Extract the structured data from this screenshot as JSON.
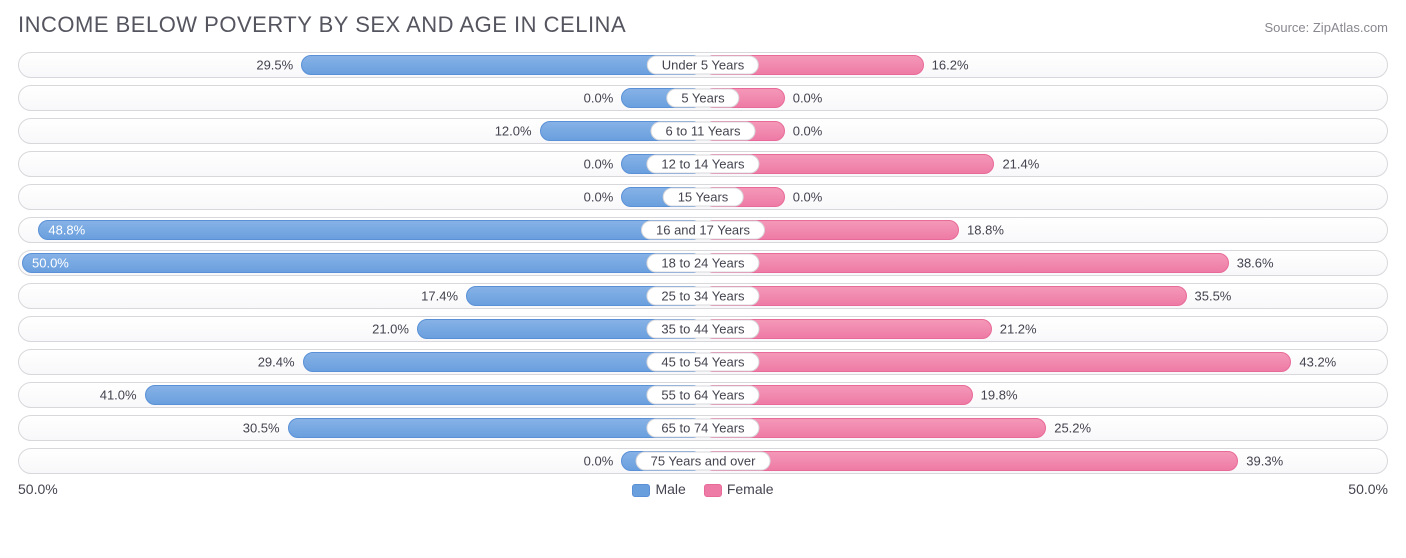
{
  "title": "INCOME BELOW POVERTY BY SEX AND AGE IN CELINA",
  "source": "Source: ZipAtlas.com",
  "chart": {
    "type": "diverging-bar",
    "axis_max": 50.0,
    "axis_label_left": "50.0%",
    "axis_label_right": "50.0%",
    "colors": {
      "male_fill": "#6a9fde",
      "male_border": "#5a90d6",
      "female_fill": "#ee7ba5",
      "female_border": "#e86a98",
      "row_border": "#d8d8dc",
      "row_bg_top": "#ffffff",
      "row_bg_bottom": "#f8f8fa",
      "text": "#444450",
      "title_text": "#555560"
    },
    "inside_label_threshold_pct": 92.0,
    "legend": {
      "male": "Male",
      "female": "Female"
    },
    "rows": [
      {
        "category": "Under 5 Years",
        "male": 29.5,
        "female": 16.2
      },
      {
        "category": "5 Years",
        "male": 0.0,
        "female": 0.0
      },
      {
        "category": "6 to 11 Years",
        "male": 12.0,
        "female": 0.0
      },
      {
        "category": "12 to 14 Years",
        "male": 0.0,
        "female": 21.4
      },
      {
        "category": "15 Years",
        "male": 0.0,
        "female": 0.0
      },
      {
        "category": "16 and 17 Years",
        "male": 48.8,
        "female": 18.8
      },
      {
        "category": "18 to 24 Years",
        "male": 50.0,
        "female": 38.6
      },
      {
        "category": "25 to 34 Years",
        "male": 17.4,
        "female": 35.5
      },
      {
        "category": "35 to 44 Years",
        "male": 21.0,
        "female": 21.2
      },
      {
        "category": "45 to 54 Years",
        "male": 29.4,
        "female": 43.2
      },
      {
        "category": "55 to 64 Years",
        "male": 41.0,
        "female": 19.8
      },
      {
        "category": "65 to 74 Years",
        "male": 30.5,
        "female": 25.2
      },
      {
        "category": "75 Years and over",
        "male": 0.0,
        "female": 39.3
      }
    ],
    "zero_bar_width_pct": 12.0
  }
}
